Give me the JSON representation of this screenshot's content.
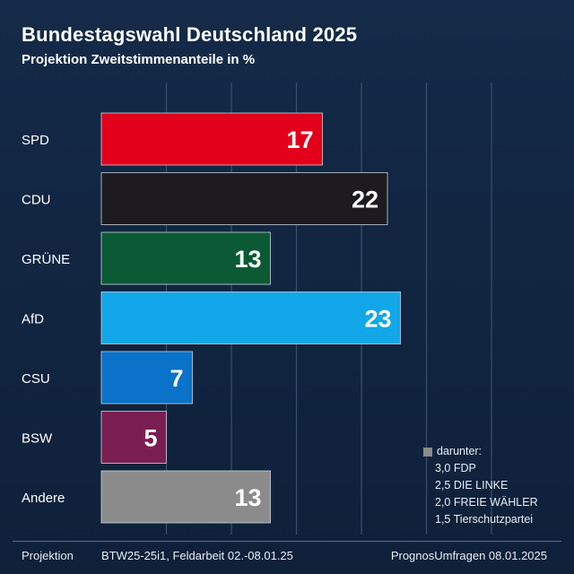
{
  "header": {
    "title": "Bundestagswahl Deutschland 2025",
    "subtitle": "Projektion Zweitstimmenanteile in %"
  },
  "chart_data": {
    "type": "bar",
    "orientation": "horizontal",
    "title": "Bundestagswahl Deutschland 2025",
    "subtitle": "Projektion Zweitstimmenanteile in %",
    "categories": [
      "SPD",
      "CDU",
      "GRÜNE",
      "AfD",
      "CSU",
      "BSW",
      "Andere"
    ],
    "values": [
      17,
      22,
      13,
      23,
      7,
      5,
      13
    ],
    "colors": [
      "#e3001b",
      "#1d1b1f",
      "#0b5a35",
      "#12a7e8",
      "#0a72c8",
      "#7a1e52",
      "#8b8b8b"
    ],
    "xlim": [
      0,
      30
    ],
    "grid": true,
    "legend": "none"
  },
  "note": {
    "head": "darunter:",
    "items": [
      "3,0 FDP",
      "2,5 DIE LINKE",
      "2,0 FREIE WÄHLER",
      "1,5 Tierschutzpartei"
    ]
  },
  "footer": {
    "left": "Projektion",
    "middle": "BTW25-25i1, Feldarbeit 02.-08.01.25",
    "right": "PrognosUmfragen 08.01.2025"
  }
}
